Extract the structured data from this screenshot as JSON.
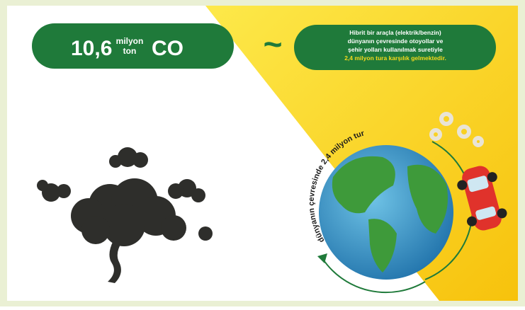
{
  "left_pill": {
    "number": "10,6",
    "unit_top": "milyon",
    "unit_bottom": "ton",
    "gas": "CO"
  },
  "connector": "~",
  "right_pill": {
    "lines": [
      "Hibrit bir araçla (elektrik/benzin)",
      "dünyanın çevresinde otoyollar ve",
      "şehir yolları kullanılmak suretiyle"
    ],
    "highlight": "2,4 milyon tura karşılık gelmektedir."
  },
  "globe_caption": "dünyanın çevresinde 2,4 milyon tur"
}
